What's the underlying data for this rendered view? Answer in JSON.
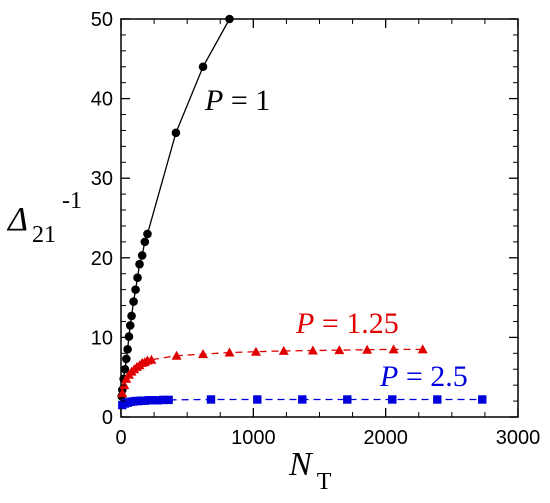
{
  "chart_data": {
    "type": "scatter",
    "xlim": [
      0,
      3000
    ],
    "ylim": [
      0,
      50
    ],
    "xticks": [
      0,
      1000,
      2000,
      3000
    ],
    "yticks": [
      0,
      10,
      20,
      30,
      40,
      50
    ],
    "xlabel_main": "N",
    "xlabel_sub": "T",
    "ylabel_main": "Δ",
    "ylabel_sub": "21",
    "ylabel_sup": "-1",
    "grid": false,
    "series": [
      {
        "label_var": "P",
        "label_rest": " = 1",
        "color": "#000000",
        "marker": "circle",
        "line": "solid",
        "x": [
          5,
          10,
          20,
          30,
          40,
          50,
          60,
          70,
          80,
          95,
          110,
          125,
          140,
          160,
          180,
          200,
          415,
          620,
          820
        ],
        "y": [
          2.6,
          3.4,
          4.8,
          6.0,
          7.3,
          8.5,
          10.1,
          11.5,
          12.7,
          14.5,
          16.0,
          17.5,
          19.2,
          20.3,
          22.0,
          23.0,
          35.7,
          44.0,
          50.0
        ]
      },
      {
        "label_var": "P",
        "label_rest": " = 1.25",
        "color": "#e00000",
        "marker": "triangle",
        "line": "dashed",
        "x": [
          10,
          25,
          40,
          60,
          80,
          100,
          120,
          140,
          160,
          180,
          200,
          230,
          420,
          620,
          820,
          1020,
          1230,
          1450,
          1650,
          1860,
          2060,
          2280
        ],
        "y": [
          3.0,
          4.0,
          4.8,
          5.3,
          5.7,
          6.0,
          6.3,
          6.5,
          6.8,
          6.9,
          7.1,
          7.2,
          7.7,
          7.9,
          8.1,
          8.2,
          8.3,
          8.35,
          8.4,
          8.45,
          8.5,
          8.5
        ]
      },
      {
        "label_var": "P",
        "label_rest": " = 2.5",
        "color": "#0000dd",
        "marker": "square",
        "line": "dashed",
        "x": [
          10,
          30,
          50,
          70,
          90,
          110,
          130,
          150,
          180,
          210,
          240,
          280,
          320,
          360,
          680,
          1030,
          1370,
          1710,
          2050,
          2390,
          2730
        ],
        "y": [
          1.5,
          1.7,
          1.8,
          1.9,
          1.95,
          2.0,
          2.0,
          2.05,
          2.05,
          2.1,
          2.1,
          2.1,
          2.15,
          2.15,
          2.2,
          2.2,
          2.2,
          2.2,
          2.2,
          2.2,
          2.2
        ]
      }
    ]
  }
}
